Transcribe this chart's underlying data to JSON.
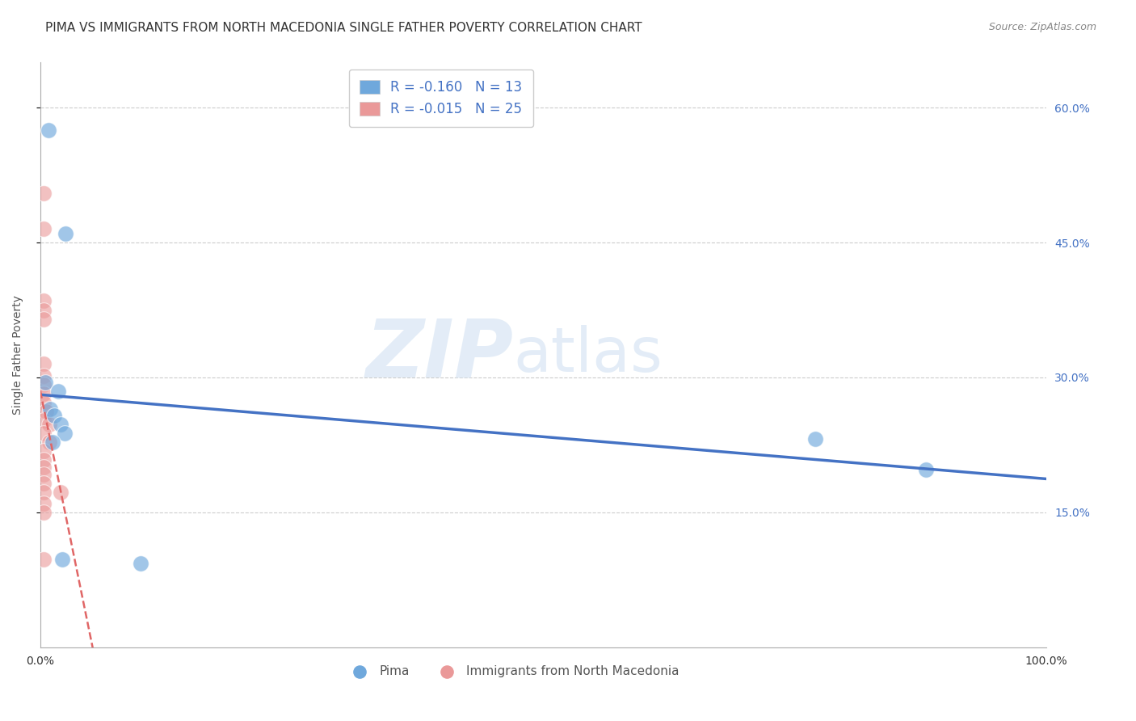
{
  "title": "PIMA VS IMMIGRANTS FROM NORTH MACEDONIA SINGLE FATHER POVERTY CORRELATION CHART",
  "source": "Source: ZipAtlas.com",
  "ylabel": "Single Father Poverty",
  "xlim": [
    0,
    1.0
  ],
  "ylim": [
    0,
    0.65
  ],
  "yticks": [
    0.15,
    0.3,
    0.45,
    0.6
  ],
  "ytick_labels": [
    "15.0%",
    "30.0%",
    "45.0%",
    "60.0%"
  ],
  "xticks": [
    0.0,
    0.25,
    0.5,
    0.75,
    1.0
  ],
  "pima_color": "#6fa8dc",
  "immig_color": "#ea9999",
  "trendline_pima_color": "#4472c4",
  "trendline_immig_color": "#e06666",
  "pima_R": "-0.160",
  "pima_N": "13",
  "immig_R": "-0.015",
  "immig_N": "25",
  "pima_points": [
    [
      0.008,
      0.575
    ],
    [
      0.025,
      0.46
    ],
    [
      0.005,
      0.295
    ],
    [
      0.018,
      0.285
    ],
    [
      0.01,
      0.265
    ],
    [
      0.014,
      0.258
    ],
    [
      0.02,
      0.248
    ],
    [
      0.024,
      0.238
    ],
    [
      0.012,
      0.228
    ],
    [
      0.77,
      0.232
    ],
    [
      0.88,
      0.198
    ],
    [
      0.022,
      0.098
    ],
    [
      0.1,
      0.093
    ]
  ],
  "immig_points": [
    [
      0.003,
      0.505
    ],
    [
      0.003,
      0.465
    ],
    [
      0.003,
      0.385
    ],
    [
      0.003,
      0.375
    ],
    [
      0.003,
      0.365
    ],
    [
      0.003,
      0.315
    ],
    [
      0.003,
      0.302
    ],
    [
      0.003,
      0.292
    ],
    [
      0.003,
      0.282
    ],
    [
      0.003,
      0.272
    ],
    [
      0.006,
      0.262
    ],
    [
      0.003,
      0.252
    ],
    [
      0.009,
      0.248
    ],
    [
      0.003,
      0.238
    ],
    [
      0.009,
      0.228
    ],
    [
      0.003,
      0.218
    ],
    [
      0.003,
      0.208
    ],
    [
      0.003,
      0.2
    ],
    [
      0.003,
      0.192
    ],
    [
      0.003,
      0.182
    ],
    [
      0.003,
      0.172
    ],
    [
      0.003,
      0.16
    ],
    [
      0.003,
      0.098
    ],
    [
      0.02,
      0.172
    ],
    [
      0.003,
      0.15
    ]
  ],
  "watermark_zip": "ZIP",
  "watermark_atlas": "atlas",
  "background_color": "#ffffff",
  "grid_color": "#cccccc",
  "title_fontsize": 11,
  "axis_label_fontsize": 10,
  "tick_fontsize": 10,
  "legend_fontsize": 12
}
